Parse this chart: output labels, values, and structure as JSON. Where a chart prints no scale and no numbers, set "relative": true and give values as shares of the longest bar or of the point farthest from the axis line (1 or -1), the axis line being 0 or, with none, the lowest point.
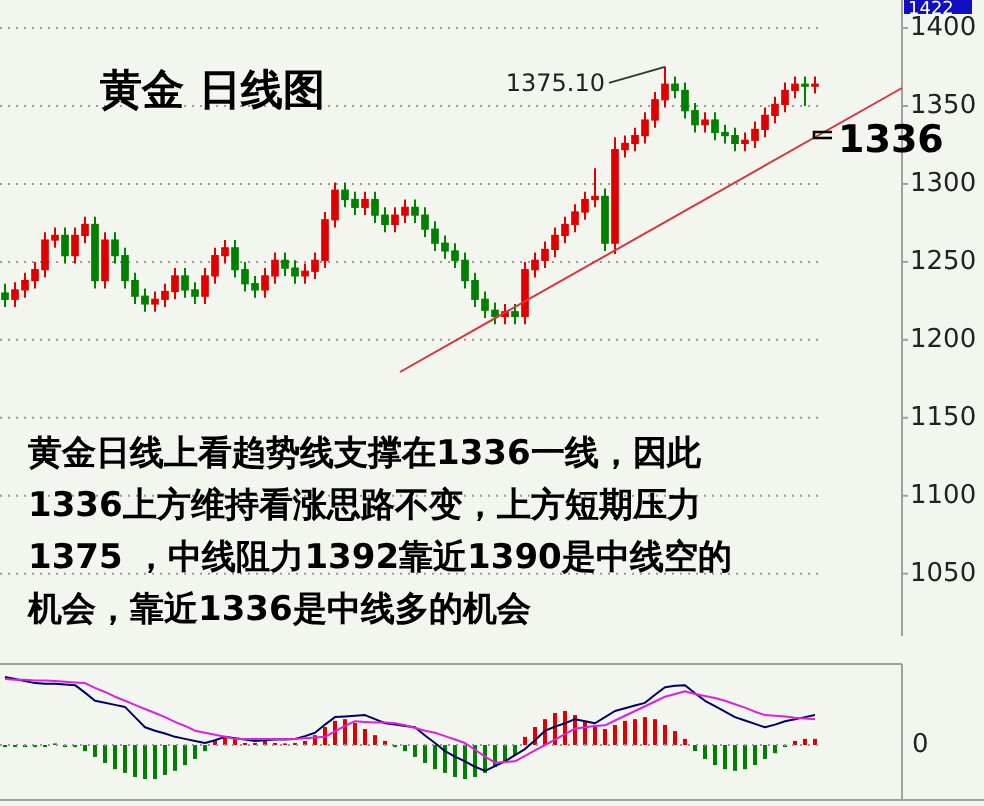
{
  "chart_data": [
    {
      "type": "candlestick",
      "title": "黄金  日线图",
      "categories": [
        null,
        null,
        null,
        null,
        null,
        null,
        null,
        null,
        null,
        null,
        null,
        null,
        null,
        null,
        null,
        null,
        null,
        null,
        null,
        null,
        null,
        null,
        null,
        null,
        null,
        null,
        null,
        null,
        null,
        null,
        null,
        null,
        null,
        null,
        null,
        null,
        null,
        null,
        null,
        null,
        null,
        null,
        null,
        null,
        null,
        null,
        null,
        null,
        null,
        null,
        null,
        null,
        null,
        null,
        null,
        null,
        null,
        null,
        null,
        null,
        null,
        null,
        null,
        null,
        null,
        null,
        null,
        null,
        null,
        null,
        null,
        null,
        null,
        null,
        null,
        null,
        null,
        null,
        null,
        null,
        null,
        null
      ],
      "ohlc": [
        [
          1230,
          1236,
          1221,
          1226
        ],
        [
          1226,
          1237,
          1221,
          1232
        ],
        [
          1232,
          1243,
          1227,
          1238
        ],
        [
          1238,
          1250,
          1233,
          1245
        ],
        [
          1245,
          1269,
          1240,
          1264
        ],
        [
          1264,
          1272,
          1259,
          1267
        ],
        [
          1267,
          1272,
          1249,
          1254
        ],
        [
          1254,
          1272,
          1249,
          1267
        ],
        [
          1267,
          1279,
          1262,
          1274
        ],
        [
          1274,
          1279,
          1233,
          1238
        ],
        [
          1238,
          1269,
          1233,
          1264
        ],
        [
          1264,
          1269,
          1249,
          1254
        ],
        [
          1254,
          1259,
          1233,
          1238
        ],
        [
          1238,
          1243,
          1223,
          1228
        ],
        [
          1228,
          1233,
          1218,
          1223
        ],
        [
          1223,
          1231,
          1218,
          1226
        ],
        [
          1226,
          1236,
          1221,
          1231
        ],
        [
          1231,
          1246,
          1226,
          1241
        ],
        [
          1241,
          1246,
          1227,
          1232
        ],
        [
          1232,
          1237,
          1223,
          1228
        ],
        [
          1228,
          1246,
          1223,
          1241
        ],
        [
          1241,
          1259,
          1236,
          1254
        ],
        [
          1254,
          1264,
          1249,
          1259
        ],
        [
          1259,
          1264,
          1240,
          1245
        ],
        [
          1245,
          1250,
          1231,
          1236
        ],
        [
          1236,
          1241,
          1227,
          1232
        ],
        [
          1232,
          1246,
          1227,
          1241
        ],
        [
          1241,
          1256,
          1236,
          1251
        ],
        [
          1251,
          1256,
          1241,
          1246
        ],
        [
          1246,
          1251,
          1236,
          1241
        ],
        [
          1241,
          1249,
          1236,
          1244
        ],
        [
          1244,
          1256,
          1239,
          1251
        ],
        [
          1251,
          1282,
          1246,
          1277
        ],
        [
          1277,
          1301,
          1272,
          1296
        ],
        [
          1296,
          1301,
          1285,
          1290
        ],
        [
          1290,
          1295,
          1280,
          1285
        ],
        [
          1285,
          1295,
          1280,
          1290
        ],
        [
          1290,
          1295,
          1275,
          1280
        ],
        [
          1280,
          1285,
          1269,
          1274
        ],
        [
          1274,
          1285,
          1269,
          1280
        ],
        [
          1280,
          1290,
          1275,
          1285
        ],
        [
          1285,
          1290,
          1275,
          1280
        ],
        [
          1280,
          1285,
          1266,
          1271
        ],
        [
          1271,
          1276,
          1257,
          1262
        ],
        [
          1262,
          1267,
          1252,
          1257
        ],
        [
          1257,
          1262,
          1246,
          1251
        ],
        [
          1251,
          1256,
          1233,
          1238
        ],
        [
          1238,
          1243,
          1221,
          1226
        ],
        [
          1226,
          1231,
          1214,
          1219
        ],
        [
          1219,
          1224,
          1210,
          1215
        ],
        [
          1215,
          1223,
          1210,
          1218
        ],
        [
          1218,
          1223,
          1210,
          1215
        ],
        [
          1215,
          1250,
          1210,
          1245
        ],
        [
          1245,
          1256,
          1240,
          1251
        ],
        [
          1251,
          1263,
          1246,
          1258
        ],
        [
          1258,
          1272,
          1253,
          1267
        ],
        [
          1267,
          1279,
          1262,
          1274
        ],
        [
          1274,
          1287,
          1269,
          1282
        ],
        [
          1282,
          1295,
          1277,
          1290
        ],
        [
          1290,
          1310,
          1285,
          1292
        ],
        [
          1292,
          1297,
          1257,
          1262
        ],
        [
          1262,
          1330,
          1255,
          1322
        ],
        [
          1322,
          1331,
          1317,
          1326
        ],
        [
          1326,
          1336,
          1321,
          1331
        ],
        [
          1331,
          1346,
          1326,
          1341
        ],
        [
          1341,
          1359,
          1336,
          1354
        ],
        [
          1354,
          1375.1,
          1349,
          1364
        ],
        [
          1364,
          1369,
          1355,
          1360
        ],
        [
          1360,
          1365,
          1342,
          1347
        ],
        [
          1347,
          1352,
          1333,
          1338
        ],
        [
          1338,
          1346,
          1333,
          1341
        ],
        [
          1341,
          1346,
          1328,
          1333
        ],
        [
          1333,
          1338,
          1326,
          1331
        ],
        [
          1331,
          1336,
          1321,
          1326
        ],
        [
          1326,
          1333,
          1321,
          1328
        ],
        [
          1328,
          1340,
          1323,
          1335
        ],
        [
          1335,
          1349,
          1330,
          1344
        ],
        [
          1344,
          1356,
          1339,
          1351
        ],
        [
          1351,
          1365,
          1346,
          1360
        ],
        [
          1360,
          1369,
          1355,
          1364
        ],
        [
          1364,
          1369,
          1350,
          1363
        ],
        [
          1363,
          1369,
          1358,
          1364
        ]
      ],
      "colors": [
        "#008000",
        "#e00000",
        "#e00000",
        "#e00000",
        "#e00000",
        "#e00000",
        "#008000",
        "#e00000",
        "#e00000",
        "#008000",
        "#e00000",
        "#008000",
        "#008000",
        "#008000",
        "#008000",
        "#e00000",
        "#e00000",
        "#e00000",
        "#008000",
        "#008000",
        "#e00000",
        "#e00000",
        "#e00000",
        "#008000",
        "#008000",
        "#008000",
        "#e00000",
        "#e00000",
        "#008000",
        "#008000",
        "#e00000",
        "#e00000",
        "#e00000",
        "#e00000",
        "#008000",
        "#008000",
        "#e00000",
        "#008000",
        "#008000",
        "#e00000",
        "#e00000",
        "#008000",
        "#008000",
        "#008000",
        "#008000",
        "#008000",
        "#008000",
        "#008000",
        "#008000",
        "#008000",
        "#e00000",
        "#008000",
        "#e00000",
        "#e00000",
        "#e00000",
        "#e00000",
        "#e00000",
        "#e00000",
        "#e00000",
        "#e00000",
        "#008000",
        "#e00000",
        "#e00000",
        "#e00000",
        "#e00000",
        "#e00000",
        "#e00000",
        "#008000",
        "#008000",
        "#008000",
        "#e00000",
        "#008000",
        "#008000",
        "#008000",
        "#e00000",
        "#e00000",
        "#e00000",
        "#e00000",
        "#e00000",
        "#e00000",
        "#008000",
        "#e00000"
      ],
      "ylim": [
        1010,
        1418
      ],
      "yticks": [
        1050,
        1100,
        1150,
        1200,
        1250,
        1300,
        1350,
        1400
      ],
      "grid": "y",
      "tick_labels": "y",
      "annotations": [
        "1422",
        "1375.10",
        "1336",
        "黄金日线上看趋势线支撑在1336一线，因此",
        "1336上方维持看涨思路不变，上方短期压力",
        "1375 ，中线阻力1392靠近1390是中线空的",
        " 机会，靠近1336是中线多的机会"
      ]
    },
    {
      "type": "bar",
      "relative": true,
      "tick_labels": false,
      "categories": [
        null,
        null,
        null,
        null,
        null,
        null,
        null,
        null,
        null,
        null,
        null,
        null,
        null,
        null,
        null,
        null,
        null,
        null,
        null,
        null,
        null,
        null,
        null,
        null,
        null,
        null,
        null,
        null,
        null,
        null,
        null,
        null,
        null,
        null,
        null,
        null,
        null,
        null,
        null,
        null,
        null,
        null,
        null,
        null,
        null,
        null,
        null,
        null,
        null,
        null,
        null,
        null,
        null,
        null,
        null,
        null,
        null,
        null,
        null,
        null,
        null,
        null,
        null,
        null,
        null,
        null,
        null,
        null,
        null,
        null,
        null,
        null,
        null,
        null,
        null,
        null,
        null,
        null,
        null,
        null,
        null,
        null
      ],
      "values": [
        -0.06,
        -0.06,
        -0.06,
        -0.06,
        -0.06,
        0,
        -0.06,
        -0.06,
        -0.18,
        -0.35,
        -0.53,
        -0.71,
        -0.82,
        -0.94,
        -1,
        -1,
        -0.88,
        -0.76,
        -0.59,
        -0.41,
        -0.18,
        0.12,
        0.24,
        0.18,
        0.06,
        0.06,
        0.12,
        0.06,
        0,
        0.06,
        0.12,
        0.29,
        0.53,
        0.71,
        0.76,
        0.65,
        0.47,
        0.29,
        0.12,
        -0.06,
        -0.18,
        -0.35,
        -0.53,
        -0.71,
        -0.82,
        -0.94,
        -1,
        -0.94,
        -0.82,
        -0.65,
        -0.47,
        -0.29,
        0.24,
        0.53,
        0.76,
        0.94,
        1,
        0.88,
        0.71,
        0.59,
        0.47,
        0.59,
        0.71,
        0.76,
        0.82,
        0.76,
        0.59,
        0.41,
        0.18,
        -0.18,
        -0.41,
        -0.59,
        -0.71,
        -0.76,
        -0.71,
        -0.59,
        -0.41,
        -0.24,
        -0.06,
        0.12,
        0.18,
        0.18
      ],
      "colors": [
        "#008000",
        "#008000",
        "#008000",
        "#008000",
        "#008000",
        "#008000",
        "#008000",
        "#008000",
        "#008000",
        "#008000",
        "#008000",
        "#008000",
        "#008000",
        "#008000",
        "#008000",
        "#008000",
        "#008000",
        "#008000",
        "#008000",
        "#008000",
        "#008000",
        "#e00000",
        "#e00000",
        "#e00000",
        "#e00000",
        "#e00000",
        "#e00000",
        "#e00000",
        "#e00000",
        "#e00000",
        "#e00000",
        "#e00000",
        "#e00000",
        "#e00000",
        "#e00000",
        "#e00000",
        "#e00000",
        "#e00000",
        "#e00000",
        "#008000",
        "#008000",
        "#008000",
        "#008000",
        "#008000",
        "#008000",
        "#008000",
        "#008000",
        "#008000",
        "#008000",
        "#008000",
        "#008000",
        "#008000",
        "#e00000",
        "#e00000",
        "#e00000",
        "#e00000",
        "#e00000",
        "#e00000",
        "#e00000",
        "#e00000",
        "#e00000",
        "#e00000",
        "#e00000",
        "#e00000",
        "#e00000",
        "#e00000",
        "#e00000",
        "#e00000",
        "#e00000",
        "#008000",
        "#008000",
        "#008000",
        "#008000",
        "#008000",
        "#008000",
        "#008000",
        "#008000",
        "#008000",
        "#008000",
        "#e00000",
        "#e00000",
        "#e00000"
      ],
      "ylabel": null
    },
    {
      "type": "line",
      "relative": true,
      "tick_labels": false,
      "ref_lines": [
        {
          "axis": "y",
          "value": 0
        }
      ],
      "annotations": [
        "0"
      ],
      "categories": [
        null,
        null,
        null,
        null,
        null,
        null,
        null,
        null,
        null,
        null,
        null,
        null,
        null,
        null,
        null,
        null,
        null,
        null,
        null,
        null,
        null,
        null,
        null,
        null,
        null,
        null,
        null,
        null,
        null,
        null,
        null,
        null,
        null,
        null,
        null,
        null,
        null,
        null,
        null,
        null,
        null,
        null,
        null,
        null,
        null,
        null,
        null,
        null,
        null,
        null,
        null,
        null,
        null,
        null,
        null,
        null,
        null,
        null,
        null,
        null,
        null,
        null,
        null,
        null,
        null,
        null,
        null,
        null,
        null,
        null,
        null,
        null,
        null,
        null,
        null,
        null,
        null,
        null,
        null,
        null,
        null,
        null
      ],
      "series": [
        {
          "color": "#000066",
          "values": [
            1.0,
            0.97,
            0.94,
            0.91,
            0.9,
            0.9,
            0.89,
            0.88,
            0.77,
            0.65,
            0.62,
            0.59,
            0.56,
            0.41,
            0.26,
            0.21,
            0.17,
            0.12,
            0.09,
            0.06,
            0.03,
            0.07,
            0.12,
            0.1,
            0.08,
            0.06,
            0.07,
            0.08,
            0.08,
            0.09,
            0.13,
            0.18,
            0.3,
            0.41,
            0.42,
            0.43,
            0.44,
            0.38,
            0.32,
            0.3,
            0.28,
            0.26,
            0.14,
            0.03,
            -0.09,
            -0.17,
            -0.24,
            -0.32,
            -0.38,
            -0.31,
            -0.24,
            -0.15,
            -0.06,
            0.07,
            0.21,
            0.27,
            0.32,
            0.38,
            0.35,
            0.32,
            0.41,
            0.5,
            0.54,
            0.58,
            0.62,
            0.74,
            0.85,
            0.87,
            0.88,
            0.76,
            0.65,
            0.57,
            0.49,
            0.41,
            0.36,
            0.31,
            0.26,
            0.3,
            0.35,
            0.38,
            0.41,
            0.44
          ]
        },
        {
          "color": "#e020e0",
          "values": [
            0.97,
            0.96,
            0.96,
            0.95,
            0.95,
            0.94,
            0.93,
            0.92,
            0.91,
            0.84,
            0.78,
            0.71,
            0.65,
            0.59,
            0.53,
            0.47,
            0.41,
            0.34,
            0.28,
            0.21,
            0.18,
            0.15,
            0.12,
            0.09,
            0.09,
            0.09,
            0.09,
            0.09,
            0.09,
            0.09,
            0.1,
            0.11,
            0.12,
            0.2,
            0.28,
            0.35,
            0.34,
            0.33,
            0.33,
            0.32,
            0.29,
            0.25,
            0.21,
            0.18,
            0.13,
            0.08,
            0.03,
            -0.07,
            -0.17,
            -0.26,
            -0.25,
            -0.24,
            -0.16,
            -0.08,
            0,
            0.08,
            0.16,
            0.24,
            0.26,
            0.28,
            0.29,
            0.36,
            0.43,
            0.5,
            0.57,
            0.64,
            0.71,
            0.75,
            0.79,
            0.75,
            0.72,
            0.69,
            0.65,
            0.6,
            0.55,
            0.49,
            0.44,
            0.43,
            0.42,
            0.4,
            0.39,
            0.38
          ]
        }
      ]
    }
  ]
}
